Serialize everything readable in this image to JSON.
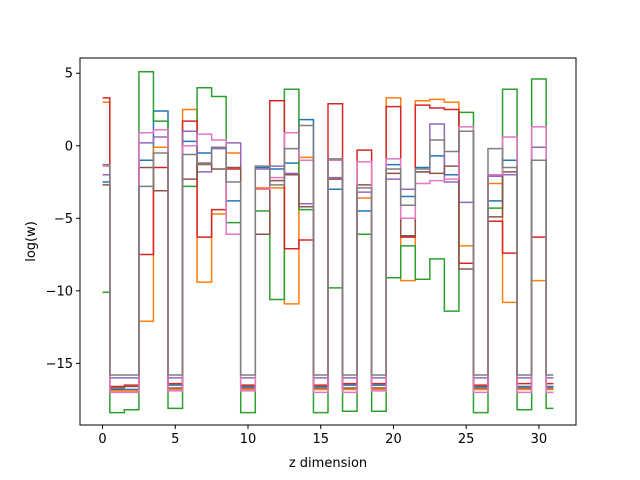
{
  "chart_data": {
    "type": "line",
    "step": "mid",
    "xlabel": "z dimension",
    "ylabel": "log(w)",
    "xlim": [
      -1.55,
      32.55
    ],
    "ylim": [
      -19.25,
      6.05
    ],
    "xticks": [
      0,
      5,
      10,
      15,
      20,
      25,
      30
    ],
    "yticks": [
      -15,
      -10,
      -5,
      0,
      5
    ],
    "x": [
      0,
      1,
      2,
      3,
      4,
      5,
      6,
      7,
      8,
      9,
      10,
      11,
      12,
      13,
      14,
      15,
      16,
      17,
      18,
      19,
      20,
      21,
      22,
      23,
      24,
      25,
      26,
      27,
      28,
      29,
      30,
      31
    ],
    "series": [
      {
        "color": "#1f77b4",
        "values": [
          -2.5,
          -16.8,
          -16.8,
          -1.0,
          2.4,
          -16.5,
          0.3,
          -0.5,
          -0.1,
          -3.8,
          -16.6,
          -1.5,
          -1.6,
          -1.2,
          1.8,
          -16.6,
          -3.0,
          -16.5,
          -4.5,
          -16.5,
          -1.3,
          -3.5,
          -1.5,
          -0.7,
          -2.0,
          1.0,
          -16.6,
          -3.8,
          -1.0,
          -16.6,
          -1.0,
          -16.6
        ]
      },
      {
        "color": "#ff7f0e",
        "values": [
          3.0,
          -16.9,
          -16.9,
          -12.1,
          -0.1,
          -16.8,
          2.5,
          -9.4,
          -4.7,
          -0.5,
          -16.8,
          -2.9,
          -2.9,
          -10.9,
          -0.8,
          -16.8,
          -1.0,
          -16.8,
          -3.6,
          -16.8,
          3.3,
          -9.3,
          3.1,
          3.2,
          3.0,
          -6.9,
          -16.8,
          -2.6,
          -10.8,
          -16.8,
          -9.3,
          -16.8
        ]
      },
      {
        "color": "#2ca02c",
        "values": [
          -10.1,
          -18.4,
          -18.2,
          5.1,
          1.7,
          -18.1,
          -2.8,
          4.0,
          3.4,
          -5.3,
          -18.4,
          -4.5,
          -10.6,
          3.9,
          -4.4,
          -18.4,
          -9.8,
          -18.3,
          -6.1,
          -18.3,
          -9.1,
          -6.9,
          -9.2,
          -7.8,
          -11.4,
          2.3,
          -18.4,
          -4.3,
          3.9,
          -18.2,
          4.6,
          -18.1
        ]
      },
      {
        "color": "#d62728",
        "values": [
          3.3,
          -16.6,
          -16.5,
          -7.5,
          -1.5,
          -16.4,
          1.7,
          -6.3,
          -4.4,
          -1.6,
          -16.5,
          -6.1,
          3.1,
          -7.1,
          -6.5,
          -16.5,
          2.9,
          -16.4,
          -0.3,
          -16.4,
          2.7,
          -6.3,
          2.8,
          2.6,
          2.5,
          -8.1,
          -16.5,
          -5.2,
          -7.4,
          -16.4,
          -6.3,
          -16.4
        ]
      },
      {
        "color": "#9467bd",
        "values": [
          -2.0,
          -16.0,
          -16.0,
          0.2,
          0.6,
          -16.0,
          1.0,
          -1.8,
          -0.2,
          0.2,
          -16.0,
          -1.6,
          -1.4,
          -1.9,
          -4.0,
          -16.0,
          -2.2,
          -16.0,
          -3.2,
          -16.0,
          -2.3,
          -3.0,
          -1.8,
          1.5,
          -2.5,
          -3.9,
          -16.0,
          -2.1,
          -2.0,
          -16.0,
          -0.1,
          -16.0
        ]
      },
      {
        "color": "#8c564b",
        "values": [
          -2.7,
          -16.7,
          -16.6,
          -1.5,
          -3.1,
          -16.7,
          -2.3,
          -1.2,
          -1.6,
          -1.5,
          -16.7,
          -6.1,
          -2.4,
          -2.0,
          -4.2,
          -16.7,
          -2.3,
          -16.7,
          -2.7,
          -16.7,
          -1.9,
          -6.2,
          -1.8,
          -1.9,
          -1.4,
          -8.5,
          -16.7,
          -4.9,
          -1.8,
          -16.7,
          -1.0,
          -16.7
        ]
      },
      {
        "color": "#e377c2",
        "values": [
          -1.4,
          -17.0,
          -17.0,
          0.9,
          1.1,
          -16.9,
          0.0,
          0.8,
          0.4,
          -6.1,
          -16.9,
          -3.0,
          -2.2,
          0.9,
          -1.0,
          -17.0,
          -1.0,
          -17.0,
          -1.1,
          -16.9,
          -0.9,
          -5.0,
          -2.6,
          -2.4,
          -2.3,
          1.3,
          -17.0,
          -2.0,
          0.6,
          -17.0,
          1.3,
          -17.0
        ]
      },
      {
        "color": "#7f7f7f",
        "values": [
          -1.3,
          -15.8,
          -15.8,
          -2.8,
          -0.5,
          -15.8,
          -0.6,
          -1.3,
          -0.1,
          -2.5,
          -15.8,
          -1.4,
          -2.7,
          -0.2,
          1.4,
          -15.8,
          -0.9,
          -15.8,
          -2.9,
          -15.8,
          -1.6,
          -4.1,
          -1.6,
          0.4,
          -0.4,
          1.0,
          -15.8,
          -0.2,
          -1.5,
          -15.8,
          -1.0,
          -15.8
        ]
      }
    ]
  }
}
